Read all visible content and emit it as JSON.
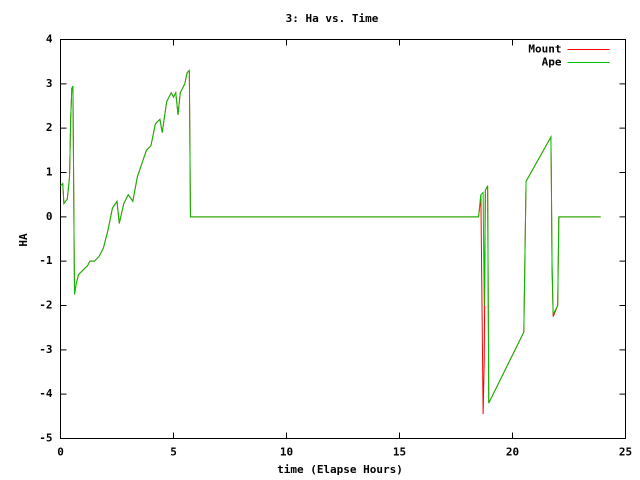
{
  "chart_data": {
    "type": "line",
    "title": "3: Ha vs. Time",
    "x_label": "time (Elapse Hours)",
    "y_label": "HA",
    "x": [
      0,
      0.1,
      0.15,
      0.3,
      0.4,
      0.45,
      0.5,
      0.55,
      0.6,
      0.62,
      0.7,
      0.8,
      1.0,
      1.2,
      1.3,
      1.5,
      1.7,
      1.9,
      2.1,
      2.3,
      2.5,
      2.6,
      2.8,
      3.0,
      3.2,
      3.4,
      3.6,
      3.8,
      4.0,
      4.2,
      4.4,
      4.5,
      4.7,
      4.9,
      5.0,
      5.1,
      5.2,
      5.3,
      5.5,
      5.6,
      5.7,
      5.75,
      18.5,
      18.6,
      18.7,
      18.75,
      18.8,
      18.9,
      18.95,
      19.0,
      20.5,
      20.6,
      21.7,
      21.72,
      21.75,
      21.8,
      22.0,
      22.05,
      23.9
    ],
    "series": [
      {
        "name": "Mount",
        "color": "#ff0000",
        "values": [
          0.7,
          0.75,
          0.3,
          0.4,
          0.9,
          2.2,
          2.9,
          2.95,
          -0.5,
          -1.75,
          -1.5,
          -1.3,
          -1.2,
          -1.1,
          -1.0,
          -1.0,
          -0.9,
          -0.7,
          -0.3,
          0.2,
          0.35,
          -0.15,
          0.3,
          0.5,
          0.35,
          0.9,
          1.2,
          1.5,
          1.6,
          2.1,
          2.2,
          1.9,
          2.6,
          2.8,
          2.7,
          2.8,
          2.3,
          2.8,
          3.0,
          3.25,
          3.3,
          0,
          0,
          0.5,
          -4.45,
          -3.2,
          0.6,
          0.7,
          -4.2,
          -4.15,
          -2.6,
          0.8,
          1.8,
          0.8,
          -1.2,
          -2.25,
          -2.0,
          0,
          0
        ]
      },
      {
        "name": "Ape",
        "color": "#00c000",
        "values": [
          0.7,
          0.75,
          0.3,
          0.4,
          0.9,
          2.2,
          2.9,
          2.95,
          -0.5,
          -1.75,
          -1.5,
          -1.3,
          -1.2,
          -1.1,
          -1.0,
          -1.0,
          -0.9,
          -0.7,
          -0.3,
          0.2,
          0.35,
          -0.15,
          0.3,
          0.5,
          0.35,
          0.9,
          1.2,
          1.5,
          1.6,
          2.1,
          2.2,
          1.9,
          2.6,
          2.8,
          2.7,
          2.8,
          2.3,
          2.8,
          3.0,
          3.25,
          3.3,
          0,
          0,
          0.5,
          0.55,
          -2.0,
          0.6,
          0.7,
          -4.2,
          -4.15,
          -2.6,
          0.8,
          1.8,
          0.8,
          -1.0,
          -2.2,
          -2.0,
          0,
          0
        ]
      }
    ],
    "xlim": [
      0,
      25
    ],
    "xticks": [
      0,
      5,
      10,
      15,
      20,
      25
    ],
    "ylim": [
      -5,
      4
    ],
    "yticks": [
      -5,
      -4,
      -3,
      -2,
      -1,
      0,
      1,
      2,
      3,
      4
    ],
    "legend": "top-right",
    "grid": false
  }
}
